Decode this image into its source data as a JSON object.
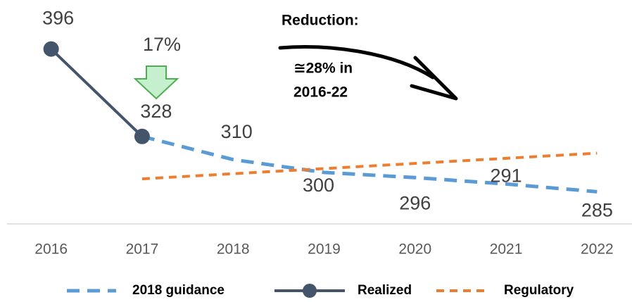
{
  "chart_data": {
    "type": "line",
    "categories": [
      "2016",
      "2017",
      "2018",
      "2019",
      "2020",
      "2021",
      "2022"
    ],
    "series": [
      {
        "name": "2018 guidance",
        "color": "#5b9bd5",
        "values": [
          null,
          328,
          310,
          300,
          296,
          291,
          285
        ]
      },
      {
        "name": "Realized",
        "color": "#44546a",
        "values": [
          396,
          328,
          null,
          null,
          null,
          null,
          null
        ]
      },
      {
        "name": "Regulatory",
        "color": "#ed7d31",
        "values": [
          null,
          295,
          299,
          303,
          307,
          311,
          315
        ]
      }
    ],
    "ylim": [
      260,
      404
    ],
    "annotations": [
      "17%",
      "Reduction:",
      "≅28% in",
      "2016-22"
    ]
  }
}
